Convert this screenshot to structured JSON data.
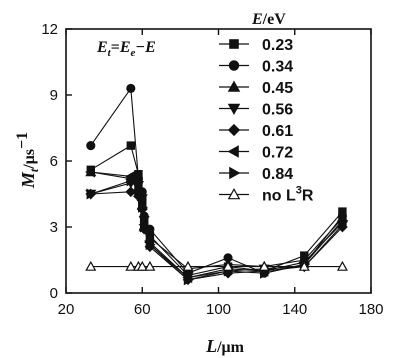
{
  "chart_data": {
    "type": "line",
    "title": "",
    "annotation": {
      "lhs": "E",
      "lhs_sub": "t",
      "eq": "=",
      "rhs": "E",
      "rhs_sub": "e",
      "minus": "−E"
    },
    "xlabel": {
      "symbol": "L",
      "unit": "/μm"
    },
    "ylabel": {
      "symbol": "M",
      "sub": "t",
      "unit": "/μs",
      "unit_sup": "−1"
    },
    "xlim": [
      20,
      180
    ],
    "ylim": [
      0,
      12
    ],
    "xticks": [
      "20",
      "60",
      "100",
      "140",
      "180"
    ],
    "yticks": [
      "0",
      "3",
      "6",
      "9",
      "12"
    ],
    "legend": {
      "title_symbol": "E",
      "title_unit": "/eV",
      "position": "top-right"
    },
    "series": [
      {
        "name": "0.23",
        "marker": "square",
        "x": [
          33,
          54,
          58,
          60,
          61,
          64,
          84,
          105,
          124,
          145,
          165
        ],
        "y": [
          5.6,
          6.7,
          5.4,
          4.2,
          3.2,
          2.6,
          0.8,
          1.2,
          1.0,
          1.7,
          3.7
        ]
      },
      {
        "name": "0.34",
        "marker": "circle",
        "x": [
          33,
          54,
          58,
          60,
          61,
          64,
          84,
          105,
          124,
          145,
          165
        ],
        "y": [
          6.7,
          9.3,
          5.2,
          4.6,
          3.5,
          2.9,
          0.9,
          1.6,
          0.9,
          1.3,
          3.5
        ]
      },
      {
        "name": "0.45",
        "marker": "triangle-up",
        "x": [
          33,
          54,
          58,
          60,
          61,
          64,
          84,
          105,
          124,
          145,
          165
        ],
        "y": [
          5.5,
          5.2,
          4.8,
          4.0,
          3.0,
          2.5,
          1.1,
          1.3,
          1.2,
          1.5,
          3.4
        ]
      },
      {
        "name": "0.56",
        "marker": "triangle-down",
        "x": [
          33,
          54,
          58,
          60,
          61,
          64,
          84,
          105,
          124,
          145,
          165
        ],
        "y": [
          4.5,
          5.0,
          4.9,
          4.3,
          3.3,
          2.2,
          0.7,
          1.0,
          1.1,
          1.2,
          3.1
        ]
      },
      {
        "name": "0.61",
        "marker": "diamond",
        "x": [
          33,
          54,
          58,
          60,
          61,
          64,
          84,
          105,
          124,
          145,
          165
        ],
        "y": [
          4.5,
          4.6,
          4.4,
          3.8,
          2.9,
          2.1,
          0.6,
          0.9,
          1.0,
          1.2,
          3.0
        ]
      },
      {
        "name": "0.72",
        "marker": "triangle-left",
        "x": [
          33,
          54,
          58,
          60,
          61,
          64,
          84,
          105,
          124,
          145,
          165
        ],
        "y": [
          5.5,
          5.3,
          5.0,
          4.2,
          3.1,
          2.3,
          0.7,
          1.1,
          1.0,
          1.4,
          3.2
        ]
      },
      {
        "name": "0.84",
        "marker": "triangle-right",
        "x": [
          33,
          54,
          58,
          60,
          61,
          64,
          84,
          105,
          124,
          145,
          165
        ],
        "y": [
          4.5,
          5.1,
          4.7,
          3.9,
          3.0,
          2.2,
          0.6,
          1.0,
          0.9,
          1.3,
          3.3
        ]
      },
      {
        "name": "no L³R",
        "name_text": "no L",
        "name_sup": "3",
        "name_tail": "R",
        "marker": "open-triangle-up",
        "x": [
          33,
          54,
          58,
          60,
          64,
          84,
          105,
          124,
          145,
          165
        ],
        "y": [
          1.2,
          1.2,
          1.2,
          1.2,
          1.2,
          1.2,
          1.2,
          1.2,
          1.2,
          1.2
        ]
      }
    ]
  }
}
